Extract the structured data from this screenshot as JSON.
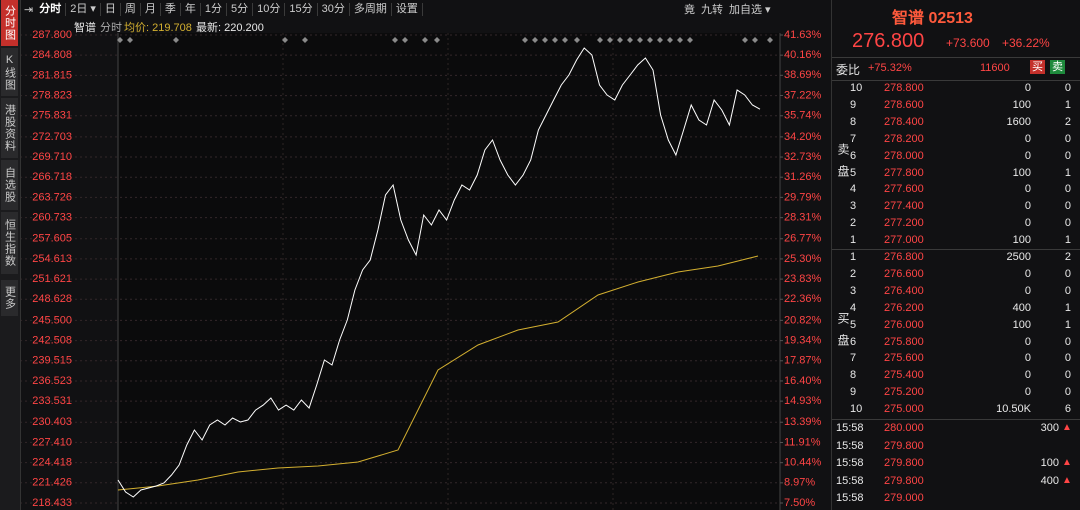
{
  "tabs": [
    "分时图",
    "K线图",
    "港股资料",
    "自选股",
    "恒生指数",
    "更多"
  ],
  "toolbar": {
    "items": [
      "分时",
      "2日",
      "日",
      "周",
      "月",
      "季",
      "年",
      "1分",
      "5分",
      "10分",
      "15分",
      "30分",
      "多周期",
      "设置"
    ],
    "right": [
      "竟",
      "九转",
      "加自选"
    ]
  },
  "info": {
    "name": "智谱",
    "mode": "分时",
    "avg_label": "均价: 219.708",
    "latest_label": "最新: 220.200"
  },
  "chart": {
    "type": "line",
    "ylim": [
      218.433,
      287.8
    ],
    "yticks": [
      {
        "value": 287.8,
        "label": "287.800"
      },
      284.808,
      281.815,
      278.823,
      275.831,
      272.703,
      {
        "value": 269.71,
        "label": "269.710"
      },
      266.718,
      263.726,
      260.733,
      257.605,
      254.613,
      251.621,
      248.628,
      {
        "value": 245.5,
        "label": "245.500"
      },
      242.508,
      239.515,
      236.523,
      233.531,
      230.403,
      {
        "value": 227.41,
        "label": "227.410"
      },
      224.418,
      221.426,
      218.433
    ],
    "y2lim": [
      7.5,
      41.63
    ],
    "y2ticks": [
      {
        "value": 41.63,
        "label": "41.63%"
      },
      {
        "value": 40.16,
        "label": "40.16%"
      },
      {
        "value": 38.69,
        "label": "38.69%"
      },
      {
        "value": 37.22,
        "label": "37.22%"
      },
      {
        "value": 35.74,
        "label": "35.74%"
      },
      {
        "value": 34.2,
        "label": "34.20%"
      },
      {
        "value": 32.73,
        "label": "32.73%"
      },
      {
        "value": 31.26,
        "label": "31.26%"
      },
      {
        "value": 29.79,
        "label": "29.79%"
      },
      {
        "value": 28.31,
        "label": "28.31%"
      },
      {
        "value": 26.77,
        "label": "26.77%"
      },
      {
        "value": 25.3,
        "label": "25.30%"
      },
      {
        "value": 23.83,
        "label": "23.83%"
      },
      {
        "value": 22.36,
        "label": "22.36%"
      },
      {
        "value": 20.82,
        "label": "20.82%"
      },
      {
        "value": 19.34,
        "label": "19.34%"
      },
      {
        "value": 17.87,
        "label": "17.87%"
      },
      {
        "value": 16.4,
        "label": "16.40%"
      },
      {
        "value": 14.93,
        "label": "14.93%"
      },
      {
        "value": 13.39,
        "label": "13.39%"
      },
      {
        "value": 11.91,
        "label": "11.91%"
      },
      {
        "value": 10.44,
        "label": "10.44%"
      },
      {
        "value": 8.97,
        "label": "8.97%"
      },
      {
        "value": 7.5,
        "label": "7.50%"
      }
    ],
    "grid": true,
    "series": [
      {
        "color": "#ffffff",
        "values": [
          221.84,
          220.06,
          219.32,
          220.36,
          220.66,
          220.95,
          221.4,
          222.58,
          224.07,
          227.03,
          229.25,
          227.77,
          229.99,
          230.73,
          229.99,
          231.03,
          230.44,
          230.73,
          232.21,
          232.95,
          233.99,
          232.21,
          232.95,
          232.21,
          233.7,
          232.51,
          235.92,
          239.63,
          238.89,
          242.59,
          245.56,
          250.0,
          252.97,
          254.45,
          258.9,
          264.09,
          265.57,
          260.38,
          257.41,
          255.19,
          261.12,
          259.64,
          261.86,
          260.38,
          263.34,
          265.57,
          264.83,
          267.05,
          270.75,
          272.24,
          269.27,
          267.05,
          265.57,
          267.05,
          269.27,
          273.72,
          275.94,
          278.17,
          280.39,
          281.87,
          284.09,
          285.87,
          284.84,
          280.39,
          278.91,
          278.17,
          280.39,
          281.87,
          283.36,
          284.39,
          282.61,
          275.94,
          272.24,
          270.01,
          273.72,
          277.42,
          275.2,
          274.46,
          278.17,
          276.68,
          274.46,
          279.65,
          278.91,
          277.42,
          276.8
        ]
      },
      {
        "color": "#d4b030",
        "values": [
          220.36,
          220.95,
          221.84,
          223.03,
          223.62,
          223.92,
          224.51,
          226.29,
          238.15,
          241.85,
          244.08,
          245.26,
          249.26,
          251.19,
          252.67,
          253.56,
          255.04
        ]
      }
    ]
  },
  "quote": {
    "title": "智谱 02513",
    "price": "276.800",
    "change": "+73.600",
    "change_pct": "+36.22%"
  },
  "order_ratio": {
    "label": "委比",
    "value": "+75.32%",
    "diff": "11600",
    "buy": "买",
    "sell": "卖"
  },
  "sell_label": "卖盘",
  "buy_label": "买盘",
  "asks": [
    [
      "10",
      "278.800",
      "0",
      "0"
    ],
    [
      "9",
      "278.600",
      "100",
      "1"
    ],
    [
      "8",
      "278.400",
      "1600",
      "2"
    ],
    [
      "7",
      "278.200",
      "0",
      "0"
    ],
    [
      "6",
      "278.000",
      "0",
      "0"
    ],
    [
      "5",
      "277.800",
      "100",
      "1"
    ],
    [
      "4",
      "277.600",
      "0",
      "0"
    ],
    [
      "3",
      "277.400",
      "0",
      "0"
    ],
    [
      "2",
      "277.200",
      "0",
      "0"
    ],
    [
      "1",
      "277.000",
      "100",
      "1"
    ]
  ],
  "bids": [
    [
      "1",
      "276.800",
      "2500",
      "2"
    ],
    [
      "2",
      "276.600",
      "0",
      "0"
    ],
    [
      "3",
      "276.400",
      "0",
      "0"
    ],
    [
      "4",
      "276.200",
      "400",
      "1"
    ],
    [
      "5",
      "276.000",
      "100",
      "1"
    ],
    [
      "6",
      "275.800",
      "0",
      "0"
    ],
    [
      "7",
      "275.600",
      "0",
      "0"
    ],
    [
      "8",
      "275.400",
      "0",
      "0"
    ],
    [
      "9",
      "275.200",
      "0",
      "0"
    ],
    [
      "10",
      "275.000",
      "10.50K",
      "6"
    ]
  ],
  "trades": [
    {
      "time": "15:58",
      "price": "280.000",
      "volume": "300",
      "arrow": "up"
    },
    {
      "time": "15:58",
      "price": "279.800"
    },
    {
      "time": "15:58",
      "price": "279.800",
      "volume": "100",
      "arrow": "up"
    },
    {
      "time": "15:58",
      "price": "279.800",
      "volume": "400",
      "arrow": "up"
    },
    {
      "time": "15:58",
      "price": "279.000"
    }
  ]
}
